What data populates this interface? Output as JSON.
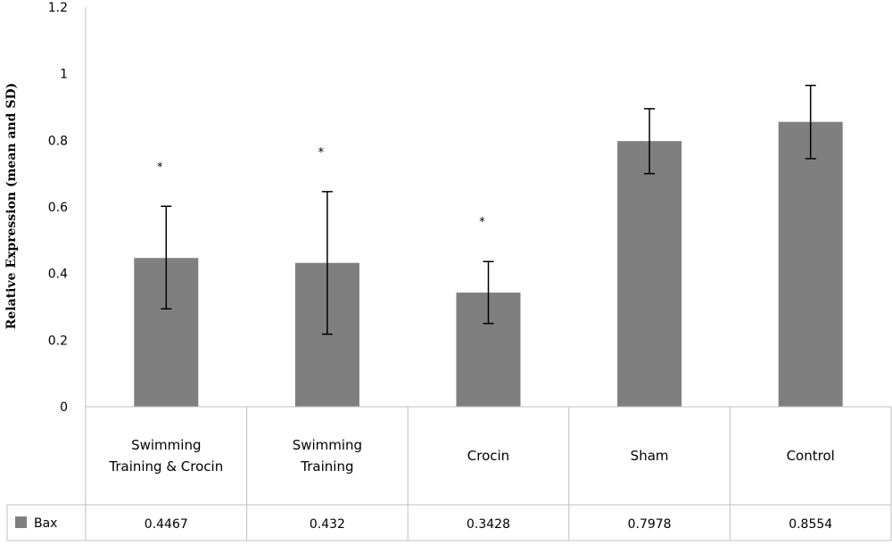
{
  "chart_data": {
    "type": "bar",
    "ylabel": "Relative Expression (mean and SD)",
    "ylim": [
      0,
      1.2
    ],
    "yticks": [
      "0",
      "0.2",
      "0.4",
      "0.6",
      "0.8",
      "1",
      "1.2"
    ],
    "categories": [
      [
        "Swimming",
        "Training & Crocin"
      ],
      [
        "Swimming",
        "Training"
      ],
      [
        "Crocin"
      ],
      [
        "Sham"
      ],
      [
        "Control"
      ]
    ],
    "series": [
      {
        "name": "Bax",
        "color": "#7f7f7f",
        "values": [
          0.4467,
          0.432,
          0.3428,
          0.7978,
          0.8554
        ],
        "value_labels": [
          "0.4467",
          "0.432",
          "0.3428",
          "0.7978",
          "0.8554"
        ],
        "error_low": [
          0.294,
          0.218,
          0.25,
          0.7,
          0.745
        ],
        "error_high": [
          0.602,
          0.646,
          0.436,
          0.895,
          0.965
        ]
      }
    ],
    "significance_marks": [
      "*",
      "*",
      "*",
      "",
      ""
    ],
    "gridlines": false,
    "legend": "data-table"
  }
}
